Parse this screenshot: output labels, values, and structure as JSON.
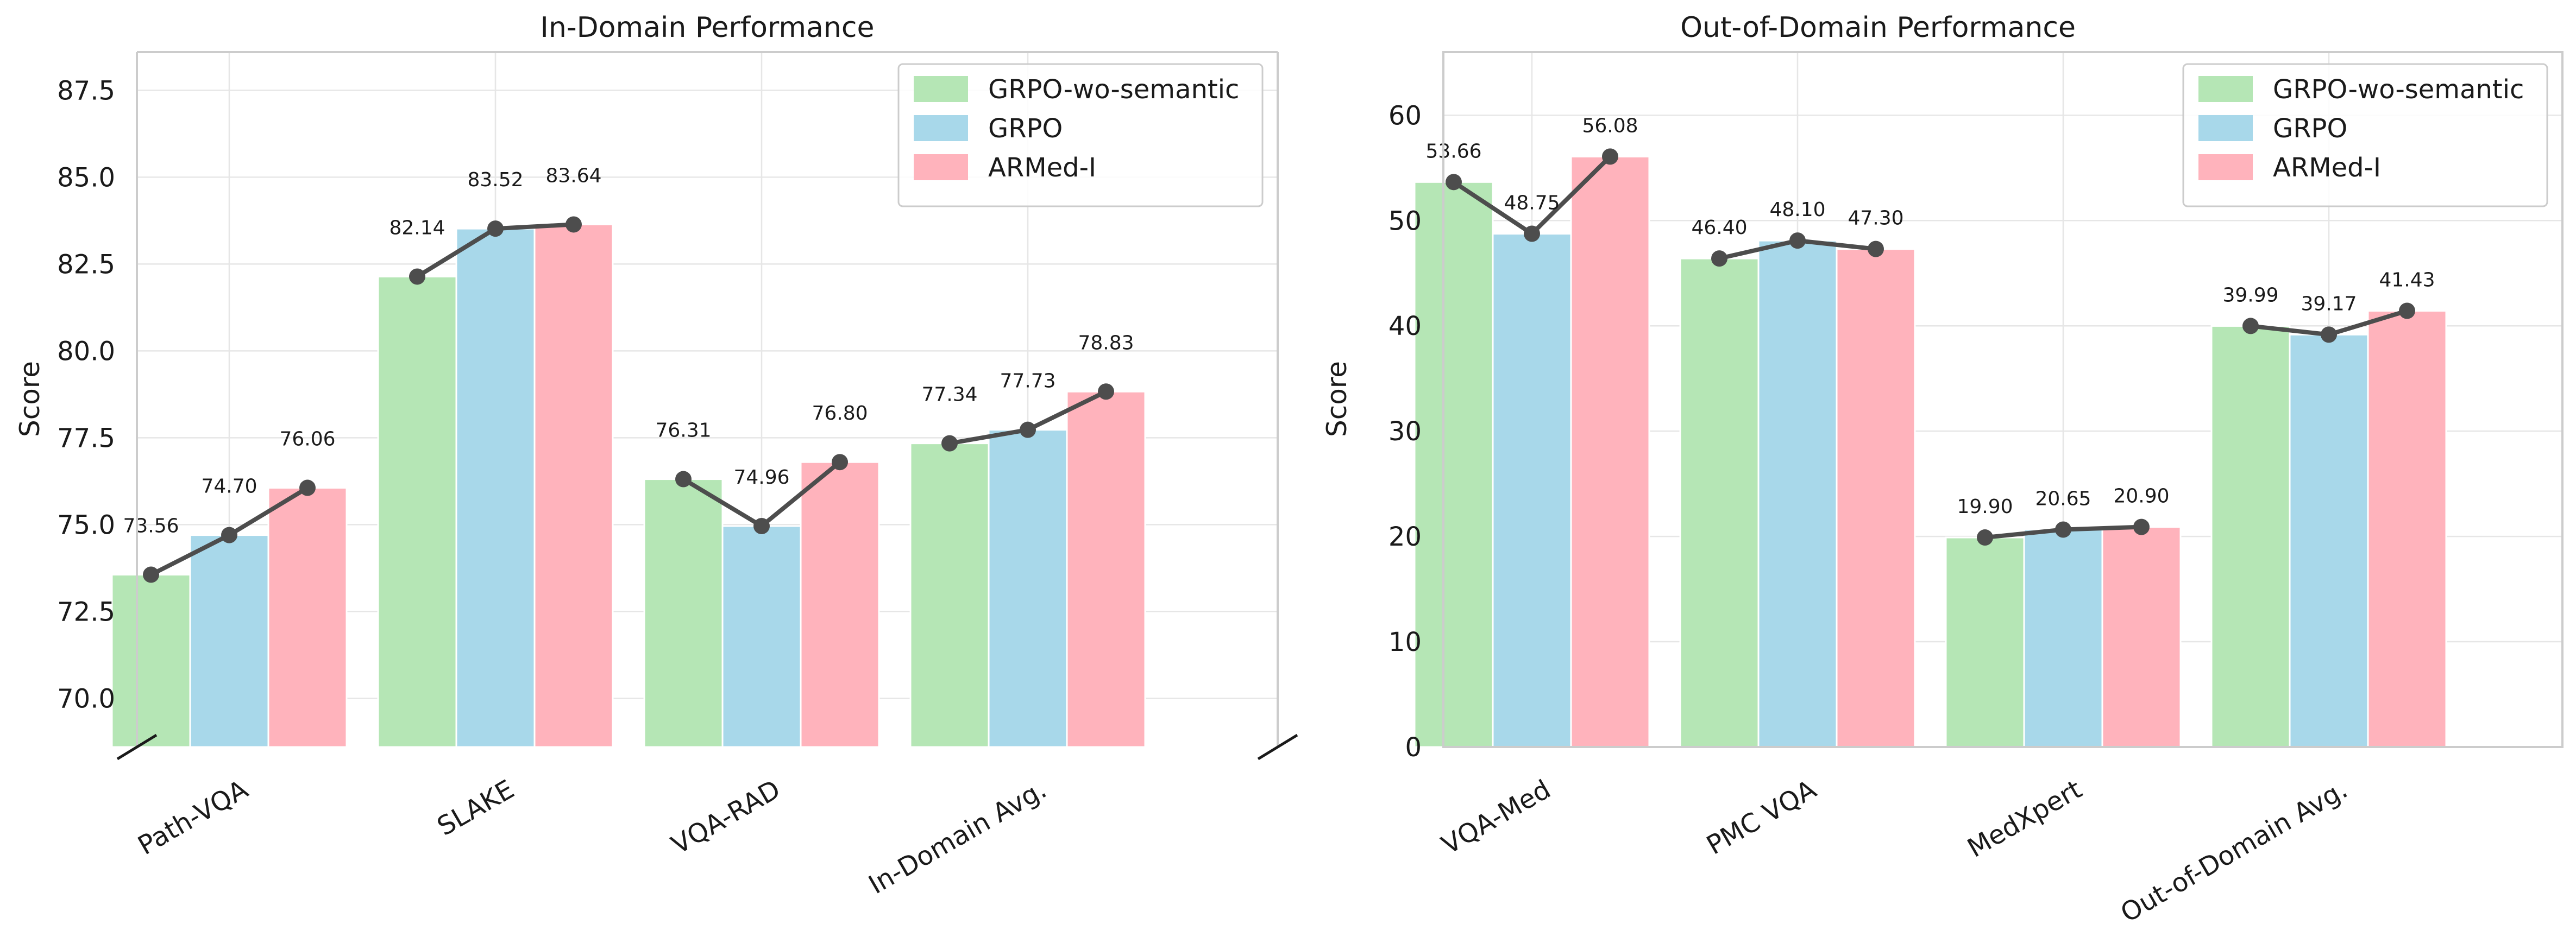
{
  "series_names": [
    "GRPO-wo-semantic",
    "GRPO",
    "ARMed-I"
  ],
  "colors": [
    "#b5e6b5",
    "#a8d8ea",
    "#ffb3bc"
  ],
  "line_color": "#4d4d4d",
  "ylabel": "Score",
  "chart_data": [
    {
      "type": "bar",
      "title": "In-Domain Performance",
      "xlabel": "",
      "ylabel": "Score",
      "ylim": [
        68.6,
        88.6
      ],
      "yticks": [
        70.0,
        72.5,
        75.0,
        77.5,
        80.0,
        82.5,
        85.0,
        87.5
      ],
      "ytick_labels": [
        "70.0",
        "72.5",
        "75.0",
        "77.5",
        "80.0",
        "82.5",
        "85.0",
        "87.5"
      ],
      "categories": [
        "Path-VQA",
        "SLAKE",
        "VQA-RAD",
        "In-Domain Avg."
      ],
      "series": [
        {
          "name": "GRPO-wo-semantic",
          "values": [
            73.56,
            82.14,
            76.31,
            77.34
          ],
          "labels": [
            "73.56",
            "82.14",
            "76.31",
            "77.34"
          ]
        },
        {
          "name": "GRPO",
          "values": [
            74.7,
            83.52,
            74.96,
            77.73
          ],
          "labels": [
            "74.70",
            "83.52",
            "74.96",
            "77.73"
          ]
        },
        {
          "name": "ARMed-I",
          "values": [
            76.06,
            83.64,
            76.8,
            78.83
          ],
          "labels": [
            "76.06",
            "83.64",
            "76.80",
            "78.83"
          ]
        }
      ],
      "legend": "top-right",
      "axis_break": true
    },
    {
      "type": "bar",
      "title": "Out-of-Domain Performance",
      "xlabel": "",
      "ylabel": "Score",
      "ylim": [
        0,
        66
      ],
      "yticks": [
        0,
        10,
        20,
        30,
        40,
        50,
        60
      ],
      "ytick_labels": [
        "0",
        "10",
        "20",
        "30",
        "40",
        "50",
        "60"
      ],
      "categories": [
        "VQA-Med",
        "PMC VQA",
        "MedXpert",
        "Out-of-Domain Avg."
      ],
      "series": [
        {
          "name": "GRPO-wo-semantic",
          "values": [
            53.66,
            46.4,
            19.9,
            39.99
          ],
          "labels": [
            "53.66",
            "46.40",
            "19.90",
            "39.99"
          ]
        },
        {
          "name": "GRPO",
          "values": [
            48.75,
            48.1,
            20.65,
            39.17
          ],
          "labels": [
            "48.75",
            "48.10",
            "20.65",
            "39.17"
          ]
        },
        {
          "name": "ARMed-I",
          "values": [
            56.08,
            47.3,
            20.9,
            41.43
          ],
          "labels": [
            "56.08",
            "47.30",
            "20.90",
            "41.43"
          ]
        }
      ],
      "legend": "top-right",
      "axis_break": false
    }
  ]
}
